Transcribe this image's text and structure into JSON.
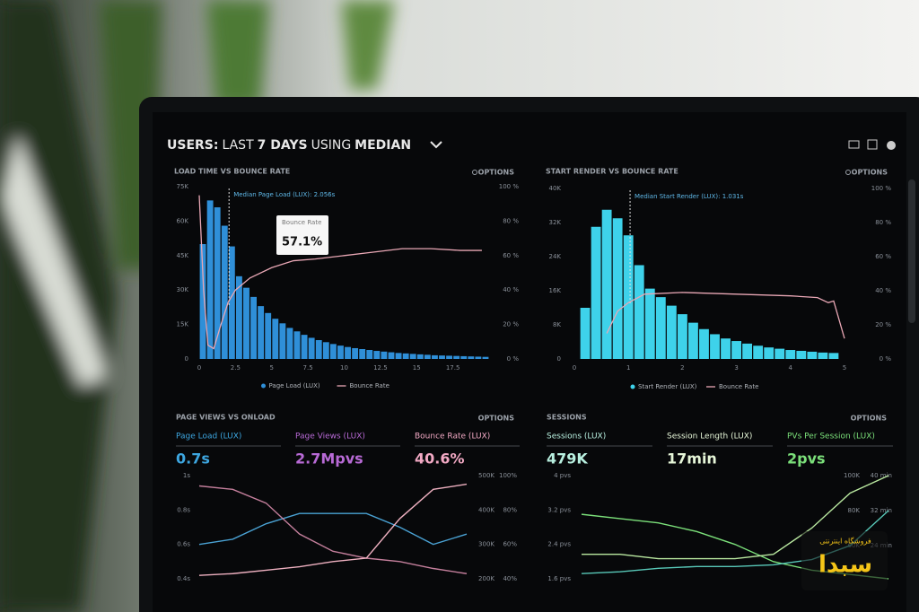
{
  "header": {
    "title_parts": [
      "USERS:",
      "LAST",
      "7 DAYS",
      "USING",
      "MEDIAN"
    ]
  },
  "panels": [
    {
      "title": "LOAD TIME VS BOUNCE RATE",
      "options": "OPTIONS",
      "median": 2.056,
      "median_label": "Median Page Load (LUX): 2.056s",
      "tooltip": {
        "label": "Bounce Rate",
        "value": "57.1%"
      },
      "xlim": [
        0,
        20
      ],
      "xticks": [
        0,
        2.5,
        5,
        7.5,
        10,
        12.5,
        15,
        17.5
      ],
      "ylim": [
        0,
        75000
      ],
      "yticks": [
        {
          "value": 0,
          "label": "0"
        },
        {
          "value": 15000,
          "label": "15K"
        },
        {
          "value": 30000,
          "label": "30K"
        },
        {
          "value": 45000,
          "label": "45K"
        },
        {
          "value": 60000,
          "label": "60K"
        },
        {
          "value": 75000,
          "label": "75K"
        }
      ],
      "y2lim": [
        0,
        100
      ],
      "y2ticks": [
        {
          "value": 0,
          "label": "0 %"
        },
        {
          "value": 20,
          "label": "20 %"
        },
        {
          "value": 40,
          "label": "40 %"
        },
        {
          "value": 60,
          "label": "60 %"
        },
        {
          "value": 80,
          "label": "80 %"
        },
        {
          "value": 100,
          "label": "100 %"
        }
      ],
      "bars": {
        "name": "Page Load (LUX)",
        "color": "#2f8fd8",
        "bins": [
          0,
          0.5,
          1,
          1.5,
          2,
          2.5,
          3,
          3.5,
          4,
          4.5,
          5,
          5.5,
          6,
          6.5,
          7,
          7.5,
          8,
          8.5,
          9,
          9.5,
          10,
          10.5,
          11,
          11.5,
          12,
          12.5,
          13,
          13.5,
          14,
          14.5,
          15,
          15.5,
          16,
          16.5,
          17,
          17.5,
          18,
          18.5,
          19,
          19.5,
          20
        ],
        "values": [
          50000,
          69000,
          66000,
          58000,
          49000,
          36000,
          31000,
          27000,
          23000,
          20000,
          17500,
          15500,
          13500,
          12000,
          10500,
          9200,
          8200,
          7300,
          6500,
          5800,
          5200,
          4700,
          4300,
          3900,
          3500,
          3200,
          2900,
          2600,
          2400,
          2200,
          2000,
          1800,
          1600,
          1500,
          1400,
          1300,
          1200,
          1100,
          1000,
          900
        ]
      },
      "line": {
        "name": "Bounce Rate",
        "color": "#e9a7b5",
        "x": [
          0,
          0.3,
          0.6,
          1,
          1.5,
          2,
          2.5,
          3.5,
          5,
          6.5,
          8,
          10,
          12,
          14,
          16,
          18,
          19.5
        ],
        "values": [
          95,
          40,
          8,
          6,
          20,
          33,
          40,
          47,
          53,
          57,
          58,
          60,
          62,
          64,
          64,
          63,
          63
        ]
      }
    },
    {
      "title": "START RENDER VS BOUNCE RATE",
      "options": "OPTIONS",
      "median": 1.031,
      "median_label": "Median Start Render (LUX): 1.031s",
      "xlim": [
        0,
        5.15
      ],
      "xticks": [
        0,
        1,
        2,
        3,
        4,
        5
      ],
      "ylim": [
        0,
        40000
      ],
      "yticks": [
        {
          "value": 0,
          "label": "0"
        },
        {
          "value": 8000,
          "label": "8K"
        },
        {
          "value": 16000,
          "label": "16K"
        },
        {
          "value": 24000,
          "label": "24K"
        },
        {
          "value": 32000,
          "label": "32K"
        },
        {
          "value": 40000,
          "label": "40K"
        }
      ],
      "y2lim": [
        0,
        100
      ],
      "y2ticks": [
        {
          "value": 0,
          "label": "0 %"
        },
        {
          "value": 20,
          "label": "20 %"
        },
        {
          "value": 40,
          "label": "40 %"
        },
        {
          "value": 60,
          "label": "60 %"
        },
        {
          "value": 80,
          "label": "80 %"
        },
        {
          "value": 100,
          "label": "100 %"
        }
      ],
      "bars": {
        "name": "Start Render (LUX)",
        "color": "#3ed2ea",
        "bins": [
          0.1,
          0.3,
          0.5,
          0.7,
          0.9,
          1.1,
          1.3,
          1.5,
          1.7,
          1.9,
          2.1,
          2.3,
          2.5,
          2.7,
          2.9,
          3.1,
          3.3,
          3.5,
          3.7,
          3.9,
          4.1,
          4.3,
          4.5,
          4.7,
          4.9
        ],
        "values": [
          12000,
          31000,
          35000,
          33000,
          29000,
          22000,
          16500,
          14500,
          12500,
          10500,
          8500,
          7000,
          5800,
          4800,
          4200,
          3600,
          3100,
          2700,
          2400,
          2100,
          1900,
          1700,
          1500,
          1400
        ]
      },
      "line": {
        "name": "Bounce Rate",
        "color": "#e9a7b5",
        "x": [
          0.6,
          0.8,
          1,
          1.3,
          2,
          3,
          4,
          4.5,
          4.7,
          4.8,
          5
        ],
        "values": [
          15,
          28,
          33,
          38,
          39,
          38,
          37,
          36,
          33,
          34,
          12
        ]
      }
    }
  ],
  "metric_panels": [
    {
      "title": "PAGE VIEWS VS ONLOAD",
      "options": "OPTIONS",
      "metrics": [
        {
          "label": "Page Load (LUX)",
          "value": "0.7s",
          "color": "#3da6e0"
        },
        {
          "label": "Page Views (LUX)",
          "value": "2.7Mpvs",
          "color": "#b86ad6"
        },
        {
          "label": "Bounce Rate (LUX)",
          "value": "40.6%",
          "color": "#f2a9c4"
        }
      ],
      "ylim": [
        0.4,
        1
      ],
      "yticks": [
        {
          "value": 1,
          "label": "1s"
        },
        {
          "value": 0.8,
          "label": "0.8s"
        },
        {
          "value": 0.6,
          "label": "0.6s"
        },
        {
          "value": 0.4,
          "label": "0.4s"
        }
      ],
      "y2lim": [
        200000,
        500000
      ],
      "y2ticks": [
        {
          "value": 500000,
          "label": "500K"
        },
        {
          "value": 400000,
          "label": "400K"
        },
        {
          "value": 300000,
          "label": "300K"
        },
        {
          "value": 200000,
          "label": "200K"
        }
      ],
      "y3lim": [
        40,
        100
      ],
      "y3ticks": [
        {
          "value": 100,
          "label": "100%"
        },
        {
          "value": 80,
          "label": "80%"
        },
        {
          "value": 60,
          "label": "60%"
        },
        {
          "value": 40,
          "label": "40%"
        }
      ],
      "series": [
        {
          "color": "#4aa2d4",
          "axis": "y",
          "values": [
            0.6,
            0.63,
            0.72,
            0.78,
            0.78,
            0.78,
            0.7,
            0.6,
            0.66
          ]
        },
        {
          "color": "#c47f9c",
          "axis": "y2",
          "values": [
            470000,
            460000,
            420000,
            330000,
            280000,
            260000,
            250000,
            230000,
            215000
          ]
        },
        {
          "color": "#eeb0c0",
          "axis": "y3",
          "values": [
            42,
            43,
            45,
            47,
            50,
            52,
            75,
            92,
            95
          ]
        }
      ]
    },
    {
      "title": "SESSIONS",
      "options": "OPTIONS",
      "metrics": [
        {
          "label": "Sessions (LUX)",
          "value": "479K",
          "color": "#b8f0e0"
        },
        {
          "label": "Session Length (LUX)",
          "value": "17min",
          "color": "#e6f6d8"
        },
        {
          "label": "PVs Per Session (LUX)",
          "value": "2pvs",
          "color": "#7be07a"
        }
      ],
      "ylim": [
        1.6,
        4
      ],
      "yticks": [
        {
          "value": 4,
          "label": "4 pvs"
        },
        {
          "value": 3.2,
          "label": "3.2 pvs"
        },
        {
          "value": 2.4,
          "label": "2.4 pvs"
        },
        {
          "value": 1.6,
          "label": "1.6 pvs"
        }
      ],
      "y2lim": [
        41000,
        100000
      ],
      "y2ticks": [
        {
          "value": 100000,
          "label": "100K"
        },
        {
          "value": 80000,
          "label": "80K"
        },
        {
          "value": 60000,
          "label": "60K"
        }
      ],
      "y3lim": [
        16.4,
        40
      ],
      "y3ticks": [
        {
          "value": 40,
          "label": "40 min"
        },
        {
          "value": 32,
          "label": "32 min"
        },
        {
          "value": 24,
          "label": "24 min"
        }
      ],
      "series": [
        {
          "color": "#7be07a",
          "axis": "y",
          "values": [
            3.1,
            3.0,
            2.9,
            2.7,
            2.4,
            2.0,
            1.8,
            1.7,
            1.6
          ]
        },
        {
          "color": "#b9e8a0",
          "axis": "y3",
          "values": [
            22,
            22,
            21,
            21,
            21,
            22,
            28,
            36,
            40
          ]
        },
        {
          "color": "#58c8b8",
          "axis": "y2",
          "values": [
            44000,
            45000,
            47000,
            48000,
            48000,
            49000,
            52000,
            60000,
            80000
          ]
        }
      ]
    }
  ],
  "watermark": {
    "tagline": "فروشگاه اینترنتی",
    "brand": "سبدا"
  }
}
